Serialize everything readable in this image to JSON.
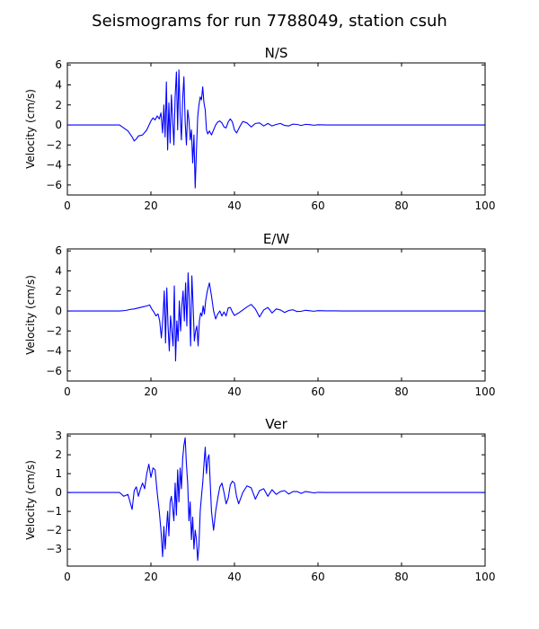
{
  "figure": {
    "title": "Seismograms for run 7788049, station csuh"
  },
  "chart_data": [
    {
      "type": "line",
      "title": "N/S",
      "xlabel": "",
      "ylabel": "Velocity (cm/s)",
      "xlim": [
        0,
        100
      ],
      "ylim": [
        -7,
        6.2
      ],
      "xticks": [
        0,
        20,
        40,
        60,
        80,
        100
      ],
      "yticks": [
        -6,
        -4,
        -2,
        0,
        2,
        4,
        6
      ],
      "color": "#0000ff",
      "series": [
        {
          "x": [
            0,
            12.5,
            13.5,
            14.5,
            15.5,
            16,
            16.5,
            17,
            18,
            19,
            20,
            20.5,
            21,
            21.5,
            22,
            22.4,
            22.8,
            23.1,
            23.4,
            23.7,
            24,
            24.3,
            24.6,
            24.9,
            25.2,
            25.5,
            25.8,
            26.1,
            26.4,
            26.7,
            27,
            27.3,
            27.6,
            27.9,
            28.2,
            28.5,
            28.8,
            29.1,
            29.4,
            29.7,
            30,
            30.3,
            30.6,
            30.9,
            31.2,
            31.5,
            31.8,
            32.1,
            32.4,
            32.7,
            33,
            33.3,
            33.6,
            34,
            34.5,
            35,
            35.5,
            36,
            36.5,
            37,
            37.5,
            38,
            38.5,
            39,
            39.5,
            40,
            40.5,
            41,
            41.5,
            42,
            43,
            44,
            45,
            46,
            47,
            48,
            49,
            50,
            51,
            52,
            53,
            54,
            55,
            56,
            57,
            58,
            59,
            60,
            61,
            62,
            64,
            66,
            70,
            100
          ],
          "y": [
            0,
            0,
            -0.3,
            -0.6,
            -1.2,
            -1.6,
            -1.4,
            -1.1,
            -1.0,
            -0.5,
            0.4,
            0.7,
            0.5,
            0.9,
            0.6,
            1.2,
            -0.8,
            2.0,
            -1.2,
            4.3,
            -2.5,
            2.2,
            -1.8,
            3.0,
            0.5,
            -2.0,
            2.8,
            5.3,
            -0.5,
            5.5,
            1.0,
            -1.5,
            2.6,
            4.8,
            0.3,
            -2.0,
            1.5,
            0.5,
            -1.5,
            -0.5,
            -3.8,
            -1.0,
            -6.3,
            -2.5,
            0.8,
            2.0,
            2.8,
            2.5,
            3.8,
            2.2,
            1.5,
            -0.5,
            -0.9,
            -0.6,
            -1.0,
            -0.5,
            0.0,
            0.3,
            0.4,
            0.2,
            -0.2,
            -0.3,
            0.3,
            0.6,
            0.3,
            -0.5,
            -0.8,
            -0.4,
            0.0,
            0.35,
            0.2,
            -0.2,
            0.15,
            0.2,
            -0.1,
            0.15,
            -0.1,
            0.05,
            0.15,
            -0.05,
            -0.1,
            0.08,
            0.05,
            -0.05,
            0.06,
            0.03,
            -0.03,
            0.02,
            0.01,
            0,
            0,
            0,
            0,
            0
          ]
        }
      ]
    },
    {
      "type": "line",
      "title": "E/W",
      "xlabel": "",
      "ylabel": "Velocity (cm/s)",
      "xlim": [
        0,
        100
      ],
      "ylim": [
        -7,
        6.2
      ],
      "xticks": [
        0,
        20,
        40,
        60,
        80,
        100
      ],
      "yticks": [
        -6,
        -4,
        -2,
        0,
        2,
        4,
        6
      ],
      "color": "#0000ff",
      "series": [
        {
          "x": [
            0,
            12.5,
            14,
            15,
            16,
            17,
            18,
            19,
            19.7,
            20.2,
            20.7,
            21.2,
            21.7,
            22.1,
            22.5,
            22.9,
            23.2,
            23.5,
            23.8,
            24.1,
            24.4,
            24.7,
            25,
            25.3,
            25.6,
            25.9,
            26.2,
            26.5,
            26.8,
            27.1,
            27.4,
            27.7,
            28,
            28.3,
            28.6,
            28.9,
            29.2,
            29.5,
            29.8,
            30.1,
            30.4,
            30.7,
            31,
            31.3,
            31.6,
            31.9,
            32.2,
            32.5,
            32.8,
            33.1,
            33.5,
            34,
            34.5,
            35,
            35.5,
            36,
            36.5,
            37,
            37.5,
            38,
            38.5,
            39,
            39.5,
            40,
            41,
            42,
            43,
            44,
            45,
            46,
            47,
            48,
            49,
            50,
            51,
            52,
            53,
            54,
            55,
            56,
            57,
            58,
            59,
            60,
            62,
            64,
            66,
            70,
            100
          ],
          "y": [
            0,
            0,
            0.05,
            0.15,
            0.2,
            0.3,
            0.4,
            0.5,
            0.6,
            0.2,
            -0.1,
            -0.5,
            -0.3,
            -1.0,
            -2.7,
            -0.5,
            2.0,
            -3.2,
            2.3,
            -1.5,
            -4.0,
            -0.5,
            -2.0,
            -3.5,
            2.5,
            -5.0,
            -1.0,
            -3.0,
            1.0,
            -2.0,
            0.5,
            2.0,
            -1.0,
            2.8,
            -1.5,
            3.8,
            1.0,
            -3.5,
            3.5,
            0.5,
            -3.0,
            -2.0,
            -1.5,
            -3.5,
            -1.0,
            -0.2,
            -0.5,
            0.5,
            -0.3,
            1.0,
            2.0,
            2.8,
            1.5,
            0.0,
            -0.8,
            -0.3,
            0.0,
            -0.5,
            -0.1,
            -0.5,
            0.3,
            0.35,
            -0.1,
            -0.45,
            -0.2,
            0.1,
            0.4,
            0.65,
            0.2,
            -0.6,
            0.1,
            0.35,
            -0.2,
            0.2,
            0.1,
            -0.15,
            0.05,
            0.12,
            -0.06,
            -0.03,
            0.07,
            0.02,
            -0.03,
            0.03,
            0.01,
            0.01,
            0,
            0,
            0
          ]
        }
      ]
    },
    {
      "type": "line",
      "title": "Ver",
      "xlabel": "",
      "ylabel": "Velocity (cm/s)",
      "xlim": [
        0,
        100
      ],
      "ylim": [
        -3.9,
        3.1
      ],
      "xticks": [
        0,
        20,
        40,
        60,
        80,
        100
      ],
      "yticks": [
        -3,
        -2,
        -1,
        0,
        1,
        2,
        3
      ],
      "color": "#0000ff",
      "series": [
        {
          "x": [
            0,
            12.5,
            13.5,
            14.5,
            15,
            15.5,
            16,
            16.5,
            17,
            17.5,
            18,
            18.5,
            19,
            19.5,
            20,
            20.5,
            21,
            21.5,
            22,
            22.4,
            22.8,
            23.1,
            23.4,
            23.7,
            24,
            24.3,
            24.6,
            24.9,
            25.2,
            25.5,
            25.8,
            26.1,
            26.4,
            26.7,
            27,
            27.3,
            27.6,
            27.9,
            28.2,
            28.5,
            28.8,
            29.1,
            29.4,
            29.7,
            30,
            30.3,
            30.6,
            30.9,
            31.2,
            31.5,
            31.8,
            32.1,
            32.4,
            32.7,
            33,
            33.3,
            33.6,
            33.9,
            34.2,
            34.5,
            35,
            35.5,
            36,
            36.5,
            37,
            37.5,
            38,
            38.5,
            39,
            39.5,
            40,
            40.5,
            41,
            41.5,
            42,
            43,
            44,
            45,
            46,
            47,
            48,
            49,
            50,
            51,
            52,
            53,
            54,
            55,
            56,
            57,
            58,
            59,
            60,
            62,
            64,
            100
          ],
          "y": [
            0,
            0,
            -0.2,
            -0.1,
            -0.5,
            -0.9,
            0.1,
            0.3,
            -0.2,
            0.2,
            0.5,
            0.2,
            1.0,
            1.5,
            0.8,
            1.3,
            1.2,
            0.0,
            -1.0,
            -2.0,
            -3.4,
            -1.8,
            -3.0,
            -2.0,
            -1.0,
            -2.3,
            -0.5,
            -0.2,
            -0.8,
            -1.5,
            0.5,
            -1.2,
            1.2,
            -0.5,
            1.3,
            0.2,
            1.8,
            2.5,
            2.9,
            1.5,
            0.5,
            -1.5,
            -0.5,
            -2.5,
            -1.3,
            -3.0,
            -2.0,
            -2.5,
            -3.6,
            -2.8,
            -1.0,
            -0.2,
            0.5,
            1.5,
            2.4,
            1.0,
            1.8,
            2.0,
            0.5,
            -1.0,
            -2.0,
            -1.0,
            -0.3,
            0.3,
            0.5,
            0.0,
            -0.6,
            -0.3,
            0.4,
            0.6,
            0.5,
            -0.2,
            -0.6,
            -0.3,
            0.0,
            0.35,
            0.25,
            -0.35,
            0.1,
            0.2,
            -0.2,
            0.15,
            -0.1,
            0.05,
            0.1,
            -0.08,
            0.05,
            0.05,
            -0.05,
            0.05,
            0.02,
            -0.02,
            0.01,
            0,
            0,
            0
          ]
        }
      ]
    }
  ]
}
